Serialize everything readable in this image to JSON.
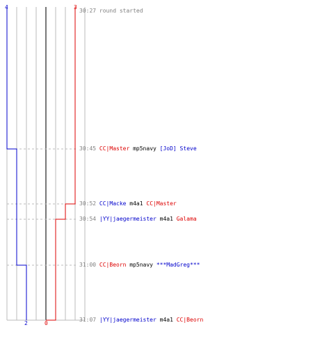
{
  "colors": {
    "team_blue": "#0000cc",
    "team_red": "#dd0000",
    "grid": "#bbbbbb",
    "center_line": "#777777",
    "dashed": "#bbbbbb",
    "time_text": "#808080",
    "weapon_text": "#000000"
  },
  "scores": {
    "blue_start": "4",
    "red_start": "3",
    "blue_end": "2",
    "red_end": "0"
  },
  "events": [
    {
      "time": "30:27",
      "message": "round started"
    },
    {
      "time": "30:45",
      "killer": "CC|Master",
      "killer_team": "red",
      "weapon": "mp5navy",
      "victim": "[JoD] Steve",
      "victim_team": "blue"
    },
    {
      "time": "30:52",
      "killer": "CC|Macke",
      "killer_team": "blue",
      "weapon": "m4a1",
      "victim": "CC|Master",
      "victim_team": "red"
    },
    {
      "time": "30:54",
      "killer": "|YY|jaegermeister",
      "killer_team": "blue",
      "weapon": "m4a1",
      "victim": "Galama",
      "victim_team": "red"
    },
    {
      "time": "31:00",
      "killer": "CC|Beorn",
      "killer_team": "red",
      "weapon": "mp5navy",
      "victim": "***MadGreg***",
      "victim_team": "blue"
    },
    {
      "time": "31:07",
      "killer": "|YY|jaegermeister",
      "killer_team": "blue",
      "weapon": "m4a1",
      "victim": "CC|Beorn",
      "victim_team": "red"
    }
  ]
}
